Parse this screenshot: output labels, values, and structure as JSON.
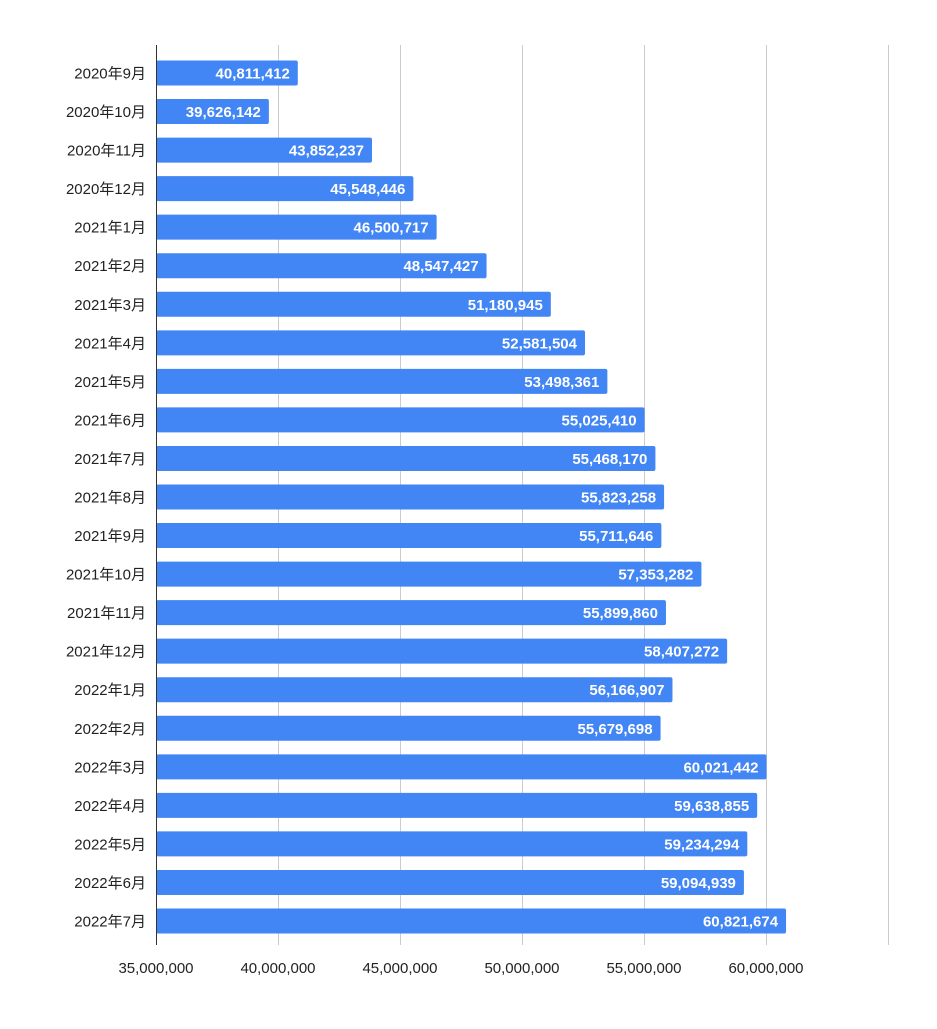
{
  "chart_data": {
    "type": "bar",
    "orientation": "horizontal",
    "categories": [
      "2020年9月",
      "2020年10月",
      "2020年11月",
      "2020年12月",
      "2021年1月",
      "2021年2月",
      "2021年3月",
      "2021年4月",
      "2021年5月",
      "2021年6月",
      "2021年7月",
      "2021年8月",
      "2021年9月",
      "2021年10月",
      "2021年11月",
      "2021年12月",
      "2022年1月",
      "2022年2月",
      "2022年3月",
      "2022年4月",
      "2022年5月",
      "2022年6月",
      "2022年7月"
    ],
    "values": [
      40811412,
      39626142,
      43852237,
      45548446,
      46500717,
      48547427,
      51180945,
      52581504,
      53498361,
      55025410,
      55468170,
      55823258,
      55711646,
      57353282,
      55899860,
      58407272,
      56166907,
      55679698,
      60021442,
      59638855,
      59234294,
      59094939,
      60821674
    ],
    "value_labels": [
      "40,811,412",
      "39,626,142",
      "43,852,237",
      "45,548,446",
      "46,500,717",
      "48,547,427",
      "51,180,945",
      "52,581,504",
      "53,498,361",
      "55,025,410",
      "55,468,170",
      "55,823,258",
      "55,711,646",
      "57,353,282",
      "55,899,860",
      "58,407,272",
      "56,166,907",
      "55,679,698",
      "60,021,442",
      "59,638,855",
      "59,234,294",
      "59,094,939",
      "60,821,674"
    ],
    "x_ticks": [
      35000000,
      40000000,
      45000000,
      50000000,
      55000000,
      60000000
    ],
    "x_tick_labels": [
      "35,000,000",
      "40,000,000",
      "45,000,000",
      "50,000,000",
      "55,000,000",
      "60,000,000"
    ],
    "xlim": [
      35000000,
      65000000
    ],
    "grid": true,
    "bar_color": "#4285f4",
    "data_label_color": "#ffffff",
    "title": "",
    "xlabel": "",
    "ylabel": ""
  }
}
